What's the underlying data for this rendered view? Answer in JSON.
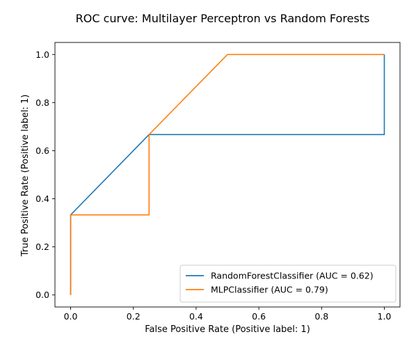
{
  "chart_data": {
    "type": "line",
    "title": "ROC curve: Multilayer Perceptron vs Random Forests",
    "xlabel": "False Positive Rate (Positive label: 1)",
    "ylabel": "True Positive Rate (Positive label: 1)",
    "xlim": [
      -0.05,
      1.05
    ],
    "ylim": [
      -0.05,
      1.05
    ],
    "x_ticks": [
      "0.0",
      "0.2",
      "0.4",
      "0.6",
      "0.8",
      "1.0"
    ],
    "y_ticks": [
      "0.0",
      "0.2",
      "0.4",
      "0.6",
      "0.8",
      "1.0"
    ],
    "grid": false,
    "legend_position": "lower-right",
    "series": [
      {
        "name": "RandomForestClassifier (AUC = 0.62)",
        "color": "#1f77b4",
        "x": [
          0.0,
          0.0,
          0.25,
          1.0,
          1.0
        ],
        "y": [
          0.0,
          0.333,
          0.667,
          0.667,
          1.0
        ]
      },
      {
        "name": "MLPClassifier (AUC = 0.79)",
        "color": "#ff7f0e",
        "x": [
          0.0,
          0.0,
          0.25,
          0.25,
          0.5,
          1.0
        ],
        "y": [
          0.0,
          0.333,
          0.333,
          0.667,
          1.0,
          1.0
        ]
      }
    ]
  }
}
